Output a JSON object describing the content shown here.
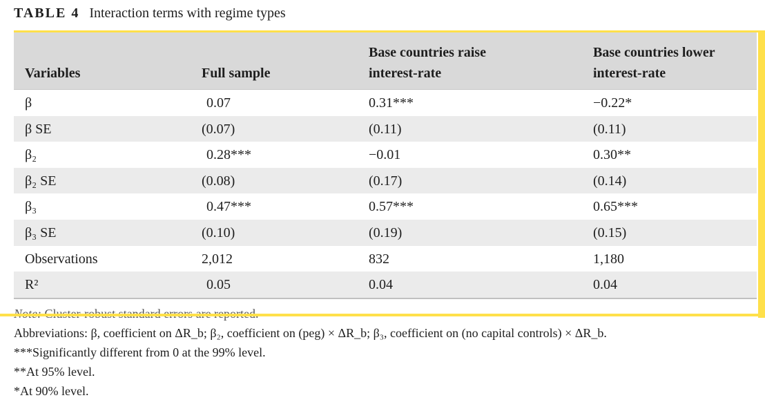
{
  "caption": {
    "label": "TABLE 4",
    "title": "Interaction terms with regime types"
  },
  "table": {
    "headers": {
      "variables": "Variables",
      "full": "Full sample",
      "raise_line1": "Base countries raise",
      "raise_line2": "interest-rate",
      "lower_line1": "Base countries lower",
      "lower_line2": "interest-rate"
    },
    "rows": [
      {
        "label": "β",
        "full": "0.07",
        "raise": "0.31***",
        "lower": "−0.22*"
      },
      {
        "label": "β SE",
        "full": "(0.07)",
        "raise": "(0.11)",
        "lower": "(0.11)"
      },
      {
        "label": "β₂",
        "full": "0.28***",
        "raise": "−0.01",
        "lower": "0.30**"
      },
      {
        "label": "β₂ SE",
        "full": "(0.08)",
        "raise": "(0.17)",
        "lower": "(0.14)"
      },
      {
        "label": "β₃",
        "full": "0.47***",
        "raise": "0.57***",
        "lower": "0.65***"
      },
      {
        "label": "β₃ SE",
        "full": "(0.10)",
        "raise": "(0.19)",
        "lower": "(0.15)"
      },
      {
        "label": "Observations",
        "full": "2,012",
        "raise": "832",
        "lower": "1,180"
      },
      {
        "label": "R²",
        "full": "0.05",
        "raise": "0.04",
        "lower": "0.04"
      }
    ]
  },
  "notes": {
    "note_label": "Note:",
    "note_text": " Cluster-robust standard errors are reported.",
    "abbreviations": "Abbreviations: β, coefficient on ΔR_b; β₂, coefficient on (peg) × ΔR_b; β₃, coefficient on (no capital controls) × ΔR_b.",
    "sig99": "***Significantly different from 0 at the 99% level.",
    "sig95": "**At 95% level.",
    "sig90": "*At 90% level."
  },
  "colors": {
    "highlight_frame": "#ffe04a",
    "header_bg": "#d9d9d9",
    "shaded_row_bg": "#ebebeb"
  }
}
